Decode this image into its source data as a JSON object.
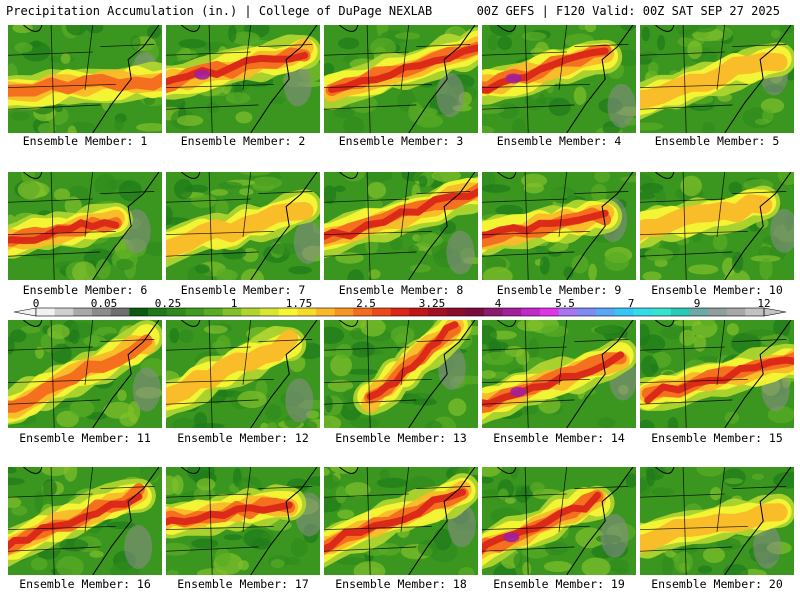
{
  "header": {
    "title": "Precipitation Accumulation (in.) | College of DuPage NEXLAB",
    "run": "00Z GEFS | F120 Valid: 00Z SAT SEP 27 2025"
  },
  "colorbar": {
    "unit": "in.",
    "tick_labels": [
      "0",
      "0.05",
      "0.25",
      "1",
      "1.75",
      "2.5",
      "3.25",
      "4",
      "5.5",
      "7",
      "9",
      "12"
    ],
    "colors": [
      "#f2f2f2",
      "#cfcfcf",
      "#a8a8a8",
      "#8c8c8c",
      "#6f6f6f",
      "#0b5c12",
      "#1e7a1a",
      "#2f8a1c",
      "#3f9a20",
      "#5aac25",
      "#80c02b",
      "#b0d52f",
      "#d8e633",
      "#f6f635",
      "#f8dc2c",
      "#fab92a",
      "#f89424",
      "#f36c1f",
      "#ea4a1b",
      "#d92618",
      "#c01616",
      "#a51020",
      "#8c0c2c",
      "#7a0a40",
      "#8a1a70",
      "#a21f9c",
      "#c02ac8",
      "#df37e8",
      "#a874f0",
      "#7d8cf5",
      "#5aa7f7",
      "#36c5f6",
      "#34dde6",
      "#36e2d0",
      "#2dc9b8",
      "#6aaaa6",
      "#8e9f9e",
      "#a7a7a7",
      "#c2c2c2"
    ]
  },
  "members": [
    {
      "label": "Ensemble Member: 1",
      "intensity": 0.75,
      "axis": [
        -0.05,
        0.62,
        1.05,
        0.5
      ]
    },
    {
      "label": "Ensemble Member: 2",
      "intensity": 0.9,
      "axis": [
        -0.05,
        0.55,
        0.9,
        0.25
      ]
    },
    {
      "label": "Ensemble Member: 3",
      "intensity": 0.8,
      "axis": [
        0.05,
        0.6,
        1.0,
        0.2
      ]
    },
    {
      "label": "Ensemble Member: 4",
      "intensity": 0.95,
      "axis": [
        -0.05,
        0.6,
        0.8,
        0.25
      ]
    },
    {
      "label": "Ensemble Member: 5",
      "intensity": 0.7,
      "axis": [
        -0.05,
        0.7,
        0.9,
        0.3
      ]
    },
    {
      "label": "Ensemble Member: 6",
      "intensity": 0.85,
      "axis": [
        -0.05,
        0.65,
        0.7,
        0.45
      ]
    },
    {
      "label": "Ensemble Member: 7",
      "intensity": 0.65,
      "axis": [
        -0.05,
        0.7,
        0.9,
        0.35
      ]
    },
    {
      "label": "Ensemble Member: 8",
      "intensity": 0.85,
      "axis": [
        -0.05,
        0.65,
        1.05,
        0.15
      ]
    },
    {
      "label": "Ensemble Member: 9",
      "intensity": 0.85,
      "axis": [
        -0.05,
        0.62,
        0.8,
        0.4
      ]
    },
    {
      "label": "Ensemble Member: 10",
      "intensity": 0.7,
      "axis": [
        -0.05,
        0.55,
        0.8,
        0.3
      ]
    },
    {
      "label": "Ensemble Member: 11",
      "intensity": 0.75,
      "axis": [
        -0.05,
        0.85,
        0.9,
        0.2
      ]
    },
    {
      "label": "Ensemble Member: 12",
      "intensity": 0.65,
      "axis": [
        -0.05,
        0.75,
        0.8,
        0.2
      ]
    },
    {
      "label": "Ensemble Member: 13",
      "intensity": 0.85,
      "axis": [
        0.3,
        0.75,
        0.85,
        0.05
      ]
    },
    {
      "label": "Ensemble Member: 14",
      "intensity": 0.9,
      "axis": [
        -0.05,
        0.8,
        0.9,
        0.35
      ]
    },
    {
      "label": "Ensemble Member: 15",
      "intensity": 0.85,
      "axis": [
        0.05,
        0.7,
        1.05,
        0.35
      ]
    },
    {
      "label": "Ensemble Member: 16",
      "intensity": 0.85,
      "axis": [
        -0.05,
        0.75,
        0.85,
        0.25
      ]
    },
    {
      "label": "Ensemble Member: 17",
      "intensity": 0.85,
      "axis": [
        -0.05,
        0.5,
        0.8,
        0.35
      ]
    },
    {
      "label": "Ensemble Member: 18",
      "intensity": 0.8,
      "axis": [
        -0.05,
        0.75,
        0.9,
        0.25
      ]
    },
    {
      "label": "Ensemble Member: 19",
      "intensity": 0.9,
      "axis": [
        -0.05,
        0.8,
        0.75,
        0.3
      ]
    },
    {
      "label": "Ensemble Member: 20",
      "intensity": 0.65,
      "axis": [
        -0.05,
        0.7,
        0.9,
        0.4
      ]
    }
  ]
}
